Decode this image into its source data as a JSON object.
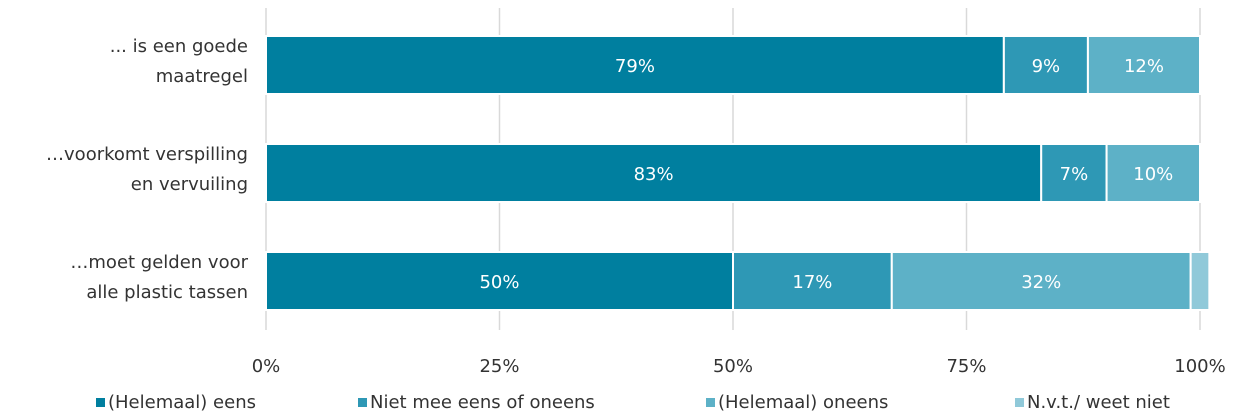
{
  "chart_data": {
    "type": "bar",
    "orientation": "horizontal",
    "stacked": true,
    "title": "",
    "xlabel": "",
    "ylabel": "",
    "xlim": [
      0,
      100
    ],
    "x_ticks": [
      "0%",
      "25%",
      "50%",
      "75%",
      "100%"
    ],
    "grid": true,
    "legend_position": "bottom",
    "categories": [
      [
        "... is een goede",
        "maatregel"
      ],
      [
        "…voorkomt verspilling",
        "en vervuiling"
      ],
      [
        "…moet gelden voor",
        "alle plastic tassen"
      ]
    ],
    "series": [
      {
        "name": "(Helemaal) eens",
        "color": "#007f9f",
        "values": [
          79,
          83,
          50
        ],
        "labels": [
          "79%",
          "83%",
          "50%"
        ]
      },
      {
        "name": "Niet mee eens of oneens",
        "color": "#2e98b5",
        "values": [
          9,
          7,
          17
        ],
        "labels": [
          "9%",
          "7%",
          "17%"
        ]
      },
      {
        "name": "(Helemaal) oneens",
        "color": "#5db1c7",
        "values": [
          12,
          10,
          32
        ],
        "labels": [
          "12%",
          "10%",
          "32%"
        ]
      },
      {
        "name": "N.v.t./ weet niet",
        "color": "#90c9d9",
        "values": [
          0,
          0,
          2
        ],
        "labels": [
          "",
          "",
          ""
        ]
      }
    ]
  }
}
